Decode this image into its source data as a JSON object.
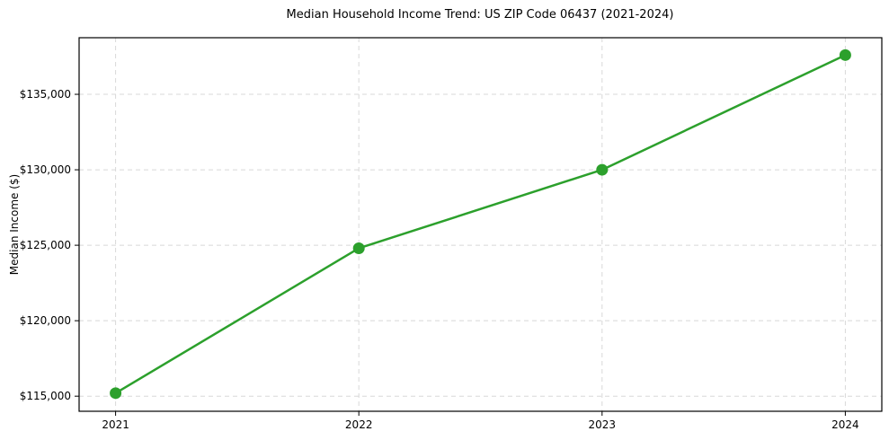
{
  "title": "Median Household Income Trend: US ZIP Code 06437 (2021-2024)",
  "chart_data": {
    "type": "line",
    "title": "Median Household Income Trend: US ZIP Code 06437 (2021-2024)",
    "xlabel": "",
    "ylabel": "Median Income ($)",
    "series": [
      {
        "name": "Median Household Income",
        "x": [
          2021,
          2022,
          2023,
          2024
        ],
        "values": [
          115200,
          124800,
          130000,
          137600
        ]
      }
    ],
    "xticks": [
      2021,
      2022,
      2023,
      2024
    ],
    "xtick_labels": [
      "2021",
      "2022",
      "2023",
      "2024"
    ],
    "yticks": [
      115000,
      120000,
      125000,
      130000,
      135000
    ],
    "ytick_labels": [
      "$115,000",
      "$120,000",
      "$125,000",
      "$130,000",
      "$135,000"
    ],
    "xlim": [
      2020.85,
      2024.15
    ],
    "ylim": [
      114000,
      138750
    ],
    "grid": true,
    "grid_style": "dashed",
    "legend": false,
    "marker": "circle"
  },
  "colors": {
    "line": "#2ca02c",
    "marker": "#2ca02c",
    "grid": "#d8d8d8",
    "frame": "#000000",
    "background": "#ffffff",
    "text": "#000000"
  }
}
